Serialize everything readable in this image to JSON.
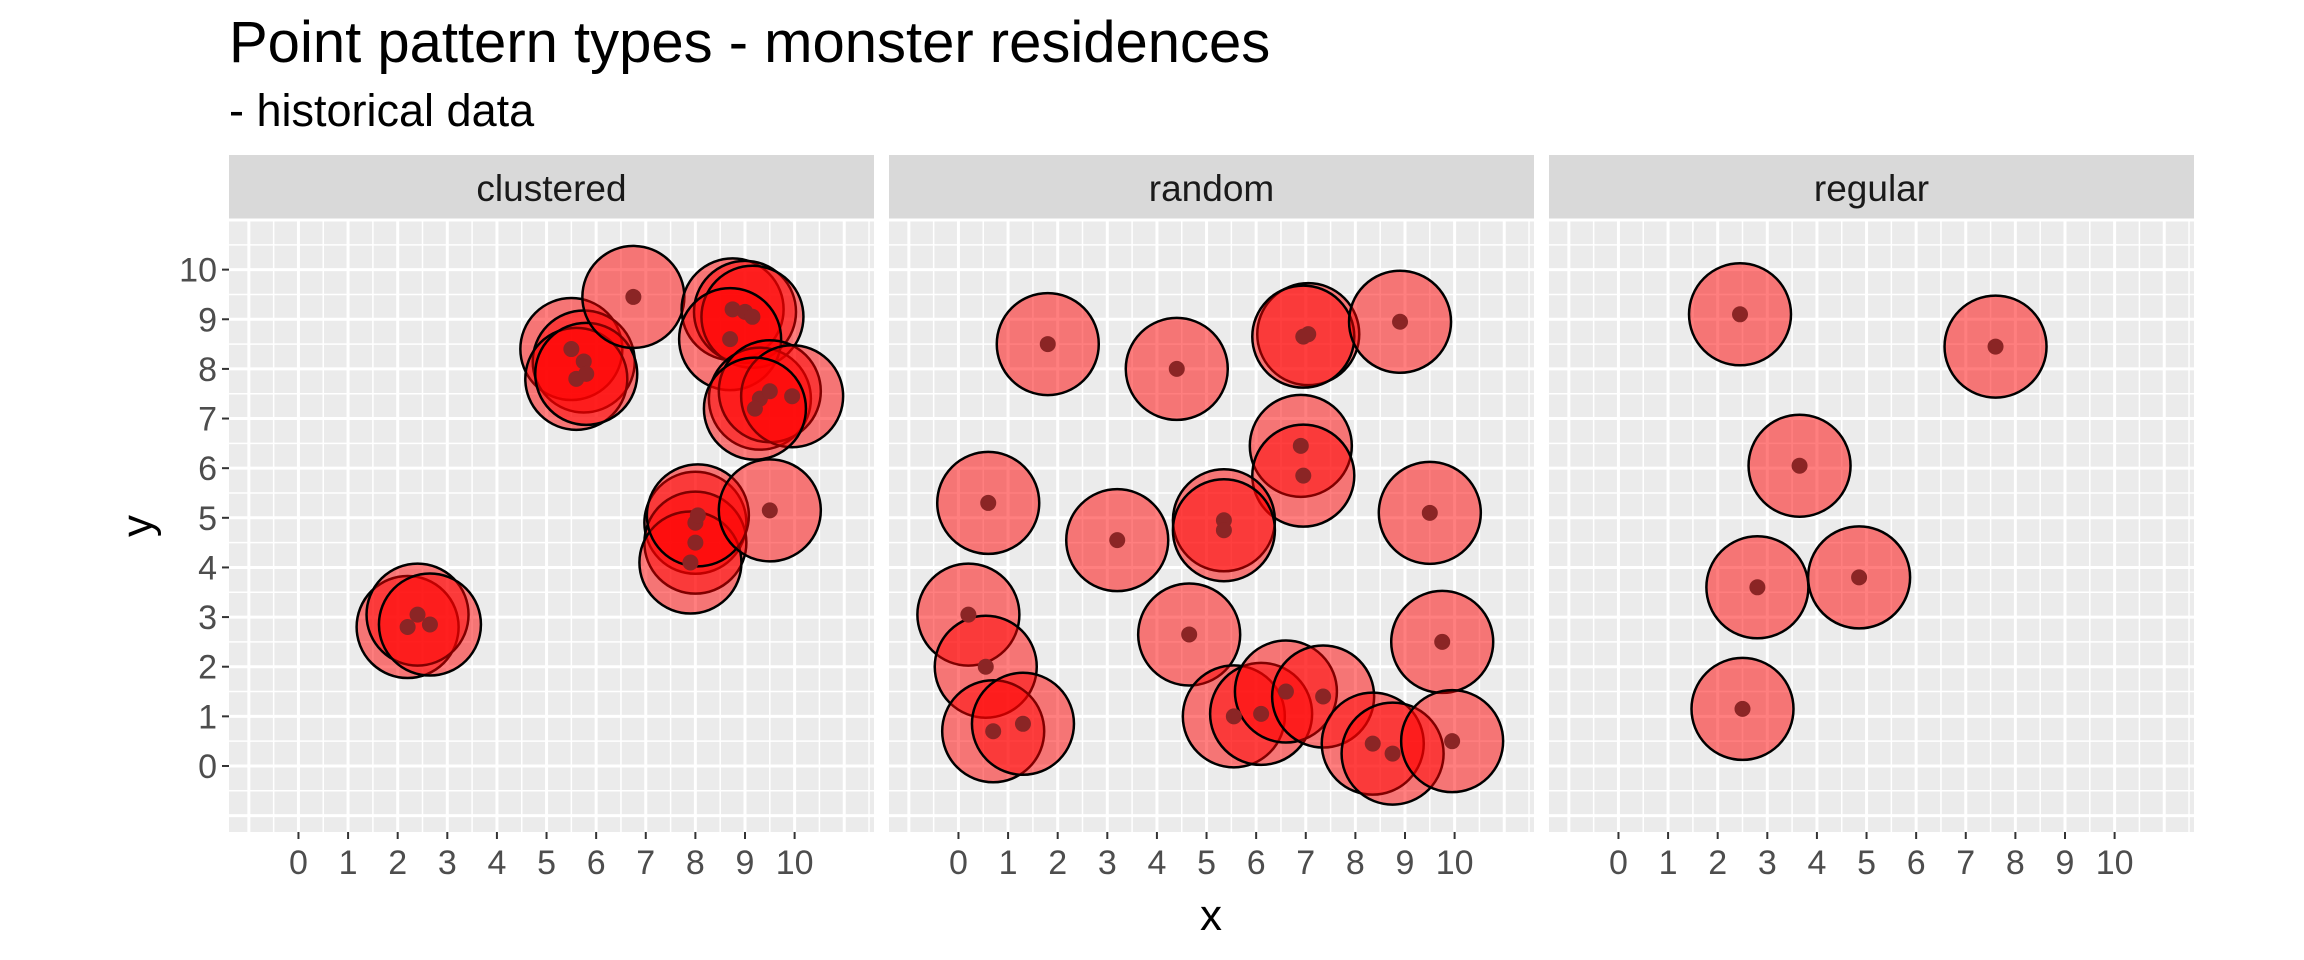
{
  "chart_data": {
    "type": "scatter",
    "title": "Point pattern types - monster residences",
    "subtitle": "- historical data",
    "xlabel": "x",
    "ylabel": "y",
    "xlim": [
      -1.4,
      11.6
    ],
    "ylim": [
      -1.33,
      11.0
    ],
    "x_ticks": [
      "0",
      "1",
      "2",
      "3",
      "4",
      "5",
      "6",
      "7",
      "8",
      "9",
      "10"
    ],
    "y_ticks": [
      "0",
      "1",
      "2",
      "3",
      "4",
      "5",
      "6",
      "7",
      "8",
      "9",
      "10"
    ],
    "grid": true,
    "colors": {
      "circle_fill": "#ff0000",
      "circle_stroke": "#000000",
      "point": "#8b2525",
      "panel_bg": "#ebebeb",
      "strip_bg": "#d9d9d9"
    },
    "facets": [
      {
        "label": "clustered",
        "points": [
          [
            2.2,
            2.8
          ],
          [
            2.4,
            3.05
          ],
          [
            2.65,
            2.85
          ],
          [
            5.5,
            8.4
          ],
          [
            5.75,
            8.15
          ],
          [
            5.6,
            7.8
          ],
          [
            5.8,
            7.9
          ],
          [
            6.75,
            9.45
          ],
          [
            8.75,
            9.2
          ],
          [
            9.0,
            9.15
          ],
          [
            9.15,
            9.05
          ],
          [
            8.7,
            8.6
          ],
          [
            9.3,
            7.4
          ],
          [
            9.5,
            7.55
          ],
          [
            9.95,
            7.45
          ],
          [
            9.2,
            7.2
          ],
          [
            8.0,
            4.9
          ],
          [
            8.0,
            4.5
          ],
          [
            7.9,
            4.1
          ],
          [
            8.05,
            5.05
          ],
          [
            9.5,
            5.15
          ]
        ]
      },
      {
        "label": "random",
        "points": [
          [
            1.8,
            8.5
          ],
          [
            4.4,
            8.0
          ],
          [
            7.05,
            8.7
          ],
          [
            6.95,
            8.65
          ],
          [
            8.9,
            8.95
          ],
          [
            6.9,
            6.45
          ],
          [
            6.95,
            5.85
          ],
          [
            0.6,
            5.3
          ],
          [
            3.2,
            4.55
          ],
          [
            5.35,
            4.95
          ],
          [
            5.35,
            4.75
          ],
          [
            9.5,
            5.1
          ],
          [
            0.2,
            3.05
          ],
          [
            4.65,
            2.65
          ],
          [
            0.55,
            2.0
          ],
          [
            9.75,
            2.5
          ],
          [
            0.7,
            0.7
          ],
          [
            1.3,
            0.85
          ],
          [
            5.55,
            1.0
          ],
          [
            6.1,
            1.05
          ],
          [
            6.6,
            1.5
          ],
          [
            7.35,
            1.4
          ],
          [
            8.35,
            0.45
          ],
          [
            8.75,
            0.25
          ],
          [
            9.95,
            0.5
          ]
        ]
      },
      {
        "label": "regular",
        "points": [
          [
            2.45,
            9.1
          ],
          [
            7.6,
            8.45
          ],
          [
            3.65,
            6.05
          ],
          [
            2.8,
            3.6
          ],
          [
            4.85,
            3.8
          ],
          [
            2.5,
            1.15
          ]
        ]
      }
    ]
  }
}
